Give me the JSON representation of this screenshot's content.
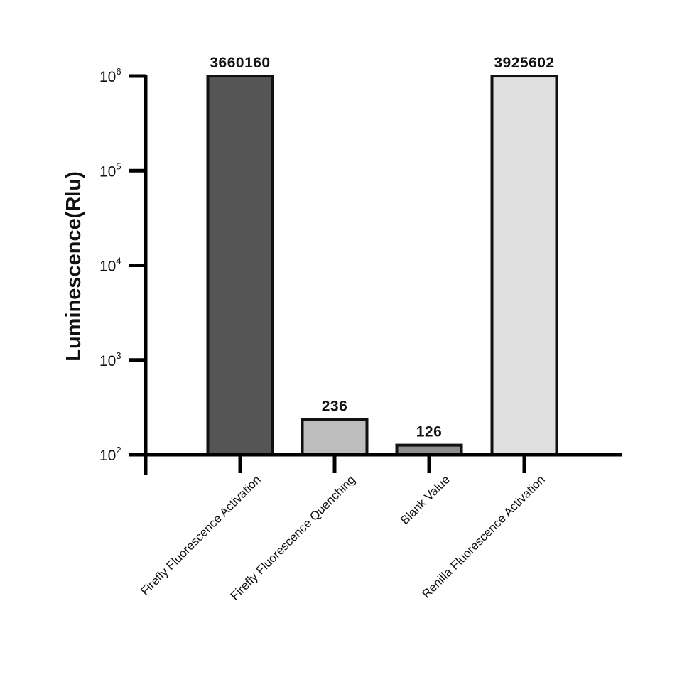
{
  "chart_data": {
    "type": "bar",
    "title": "",
    "xlabel": "",
    "ylabel": "Luminescence(Rlu)",
    "yscale": "log",
    "ylim": [
      100,
      1000000
    ],
    "yticks": [
      {
        "base": "10",
        "exp": "2",
        "value": 100
      },
      {
        "base": "10",
        "exp": "3",
        "value": 1000
      },
      {
        "base": "10",
        "exp": "4",
        "value": 10000
      },
      {
        "base": "10",
        "exp": "5",
        "value": 100000
      },
      {
        "base": "10",
        "exp": "6",
        "value": 1000000
      }
    ],
    "categories": [
      "Firefly Fluorescence Activation",
      "Firefly Fluorescence Quenching",
      "Blank Value",
      "Renilla Fluorescence Activation"
    ],
    "values": [
      3660160,
      236,
      126,
      3925602
    ],
    "value_labels": [
      "3660160",
      "236",
      "126",
      "3925602"
    ],
    "bar_colors": [
      "#555555",
      "#bdbdbd",
      "#8e8e8e",
      "#e0e0e0"
    ],
    "grid": false,
    "legend": "none"
  }
}
